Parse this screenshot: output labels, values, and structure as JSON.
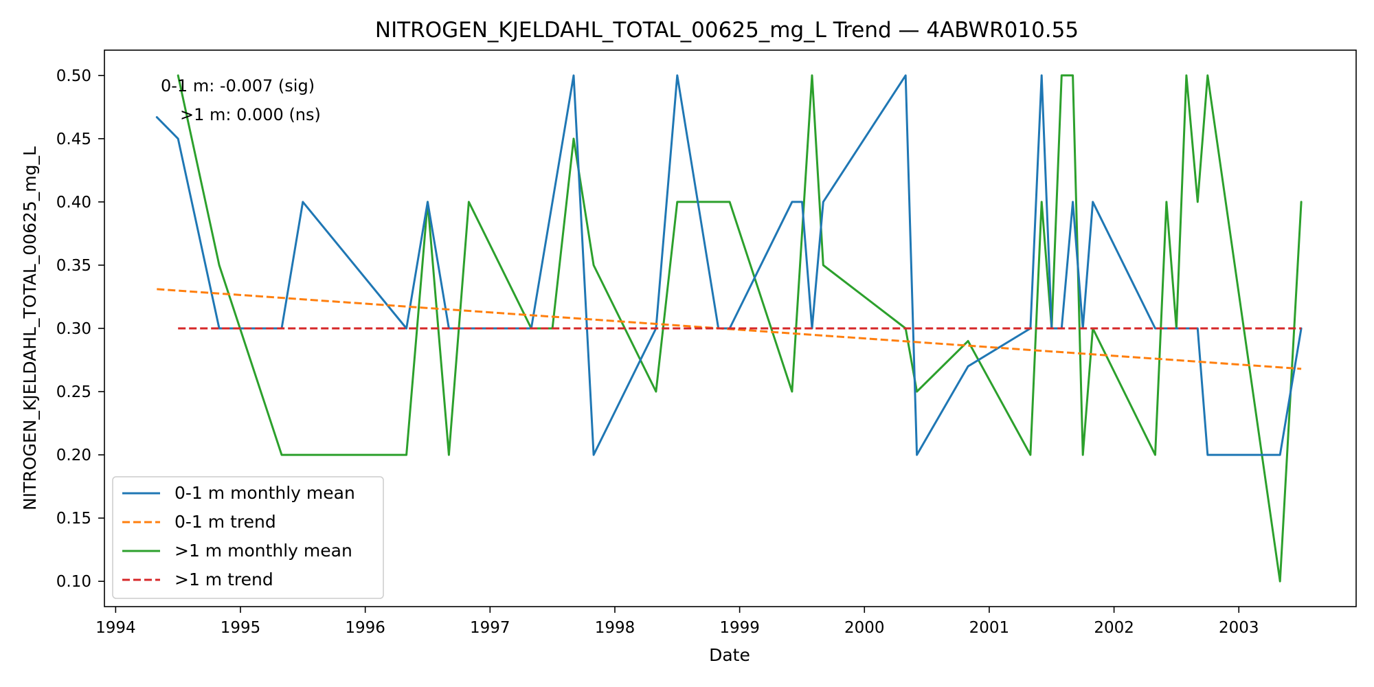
{
  "chart_data": {
    "type": "line",
    "title": "NITROGEN_KJELDAHL_TOTAL_00625_mg_L Trend — 4ABWR010.55",
    "xlabel": "Date",
    "ylabel": "NITROGEN_KJELDAHL_TOTAL_00625_mg_L",
    "xlim": [
      1993.91,
      2003.94
    ],
    "ylim": [
      0.08,
      0.52
    ],
    "x_ticks": [
      1994,
      1995,
      1996,
      1997,
      1998,
      1999,
      2000,
      2001,
      2002,
      2003
    ],
    "x_tick_labels": [
      "1994",
      "1995",
      "1996",
      "1997",
      "1998",
      "1999",
      "2000",
      "2001",
      "2002",
      "2003"
    ],
    "y_ticks": [
      0.1,
      0.15,
      0.2,
      0.25,
      0.3,
      0.35,
      0.4,
      0.45,
      0.5
    ],
    "y_tick_labels": [
      "0.10",
      "0.15",
      "0.20",
      "0.25",
      "0.30",
      "0.35",
      "0.40",
      "0.45",
      "0.50"
    ],
    "grid": false,
    "legend_position": "lower-left",
    "annotations": [
      "0-1 m: -0.007 (sig)",
      ">1 m: 0.000 (ns)"
    ],
    "series": [
      {
        "name": "0-1 m monthly mean",
        "style": "solid",
        "color": "#1f77b4",
        "points": [
          [
            1994.33,
            0.467
          ],
          [
            1994.5,
            0.45
          ],
          [
            1994.83,
            0.3
          ],
          [
            1995.33,
            0.3
          ],
          [
            1995.5,
            0.4
          ],
          [
            1996.33,
            0.3
          ],
          [
            1996.5,
            0.4
          ],
          [
            1996.67,
            0.3
          ],
          [
            1997.33,
            0.3
          ],
          [
            1997.67,
            0.5
          ],
          [
            1997.83,
            0.2
          ],
          [
            1998.33,
            0.3
          ],
          [
            1998.5,
            0.5
          ],
          [
            1998.83,
            0.3
          ],
          [
            1998.92,
            0.3
          ],
          [
            1999.42,
            0.4
          ],
          [
            1999.5,
            0.4
          ],
          [
            1999.58,
            0.3
          ],
          [
            1999.67,
            0.4
          ],
          [
            2000.33,
            0.5
          ],
          [
            2000.42,
            0.2
          ],
          [
            2000.83,
            0.27
          ],
          [
            2001.33,
            0.3
          ],
          [
            2001.42,
            0.5
          ],
          [
            2001.5,
            0.3
          ],
          [
            2001.58,
            0.3
          ],
          [
            2001.67,
            0.4
          ],
          [
            2001.75,
            0.3
          ],
          [
            2001.83,
            0.4
          ],
          [
            2002.33,
            0.3
          ],
          [
            2002.67,
            0.3
          ],
          [
            2002.75,
            0.2
          ],
          [
            2003.33,
            0.2
          ],
          [
            2003.5,
            0.3
          ]
        ]
      },
      {
        "name": "0-1 m trend",
        "style": "dashed",
        "color": "#ff7f0e",
        "points": [
          [
            1994.33,
            0.331
          ],
          [
            2003.5,
            0.268
          ]
        ]
      },
      {
        "name": ">1 m monthly mean",
        "style": "solid",
        "color": "#2ca02c",
        "points": [
          [
            1994.5,
            0.5
          ],
          [
            1994.83,
            0.35
          ],
          [
            1995.33,
            0.2
          ],
          [
            1996.33,
            0.2
          ],
          [
            1996.5,
            0.4
          ],
          [
            1996.67,
            0.2
          ],
          [
            1996.83,
            0.4
          ],
          [
            1997.33,
            0.3
          ],
          [
            1997.5,
            0.3
          ],
          [
            1997.67,
            0.45
          ],
          [
            1997.83,
            0.35
          ],
          [
            1998.33,
            0.25
          ],
          [
            1998.5,
            0.4
          ],
          [
            1998.92,
            0.4
          ],
          [
            1999.42,
            0.25
          ],
          [
            1999.58,
            0.5
          ],
          [
            1999.67,
            0.35
          ],
          [
            2000.33,
            0.3
          ],
          [
            2000.42,
            0.25
          ],
          [
            2000.83,
            0.29
          ],
          [
            2001.33,
            0.2
          ],
          [
            2001.42,
            0.4
          ],
          [
            2001.5,
            0.3
          ],
          [
            2001.58,
            0.5
          ],
          [
            2001.67,
            0.5
          ],
          [
            2001.75,
            0.2
          ],
          [
            2001.83,
            0.3
          ],
          [
            2002.33,
            0.2
          ],
          [
            2002.42,
            0.4
          ],
          [
            2002.5,
            0.3
          ],
          [
            2002.58,
            0.5
          ],
          [
            2002.67,
            0.4
          ],
          [
            2002.75,
            0.5
          ],
          [
            2003.33,
            0.1
          ],
          [
            2003.5,
            0.4
          ]
        ]
      },
      {
        "name": ">1 m trend",
        "style": "dashed",
        "color": "#d62728",
        "points": [
          [
            1994.5,
            0.3
          ],
          [
            2003.5,
            0.3
          ]
        ]
      }
    ]
  }
}
